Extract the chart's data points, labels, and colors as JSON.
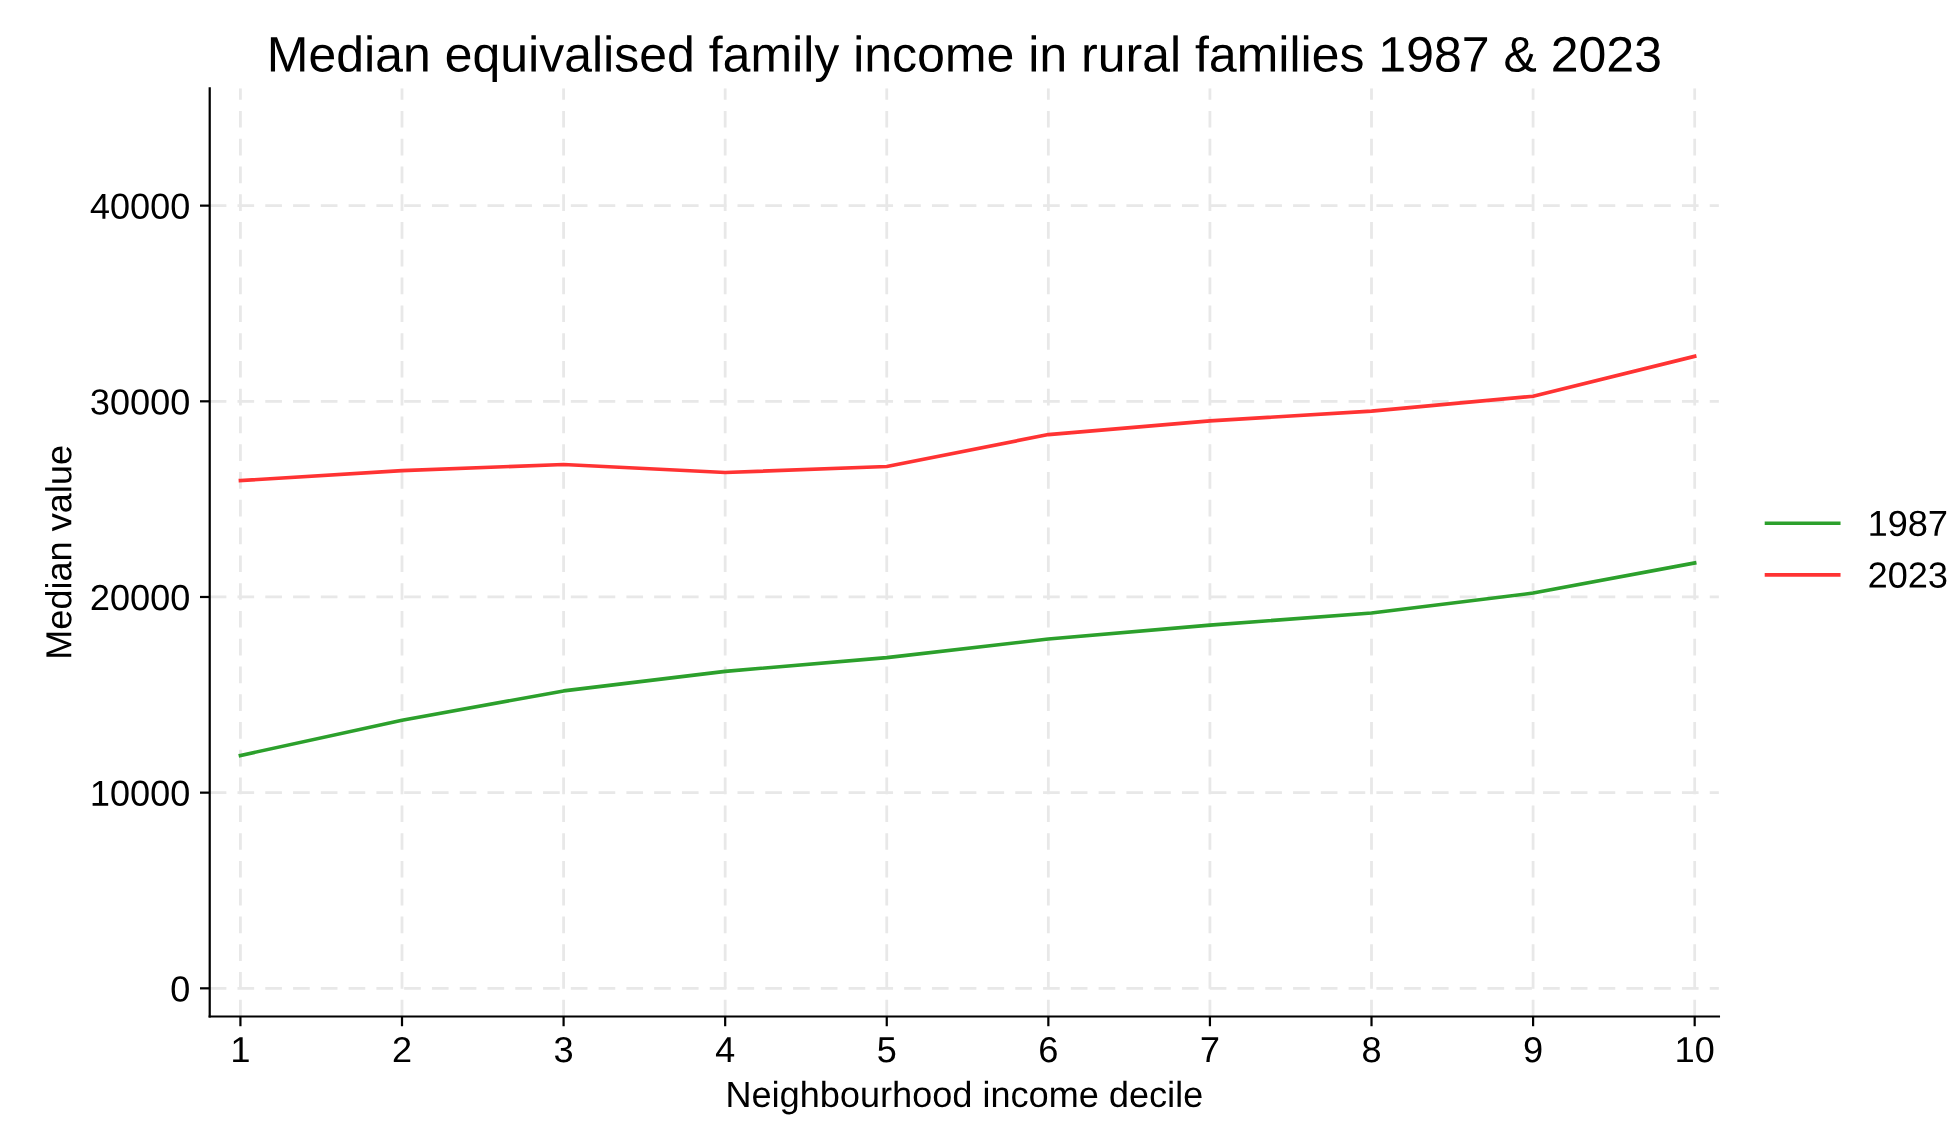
{
  "chart_data": {
    "type": "line",
    "title": "Median equivalised family income in rural families 1987 & 2023",
    "xlabel": "Neighbourhood income decile",
    "ylabel": "Median value",
    "x": [
      1,
      2,
      3,
      4,
      5,
      6,
      7,
      8,
      9,
      10
    ],
    "series": [
      {
        "name": "1987",
        "color": "#2ca02c",
        "values": [
          11900,
          13700,
          15200,
          16200,
          16900,
          17850,
          18560,
          19180,
          20200,
          21740
        ]
      },
      {
        "name": "2023",
        "color": "#ff3333",
        "values": [
          25950,
          26460,
          26770,
          26360,
          26670,
          28300,
          29000,
          29500,
          30260,
          32300
        ]
      }
    ],
    "xlim": [
      0.81,
      10.15
    ],
    "xticks": [
      1,
      2,
      3,
      4,
      5,
      6,
      7,
      8,
      9,
      10
    ],
    "ylim": [
      -1440,
      46000
    ],
    "yticks": [
      0,
      10000,
      20000,
      30000,
      40000
    ],
    "grid": true,
    "legend": "right",
    "line_style": "solid",
    "marker": "none"
  }
}
